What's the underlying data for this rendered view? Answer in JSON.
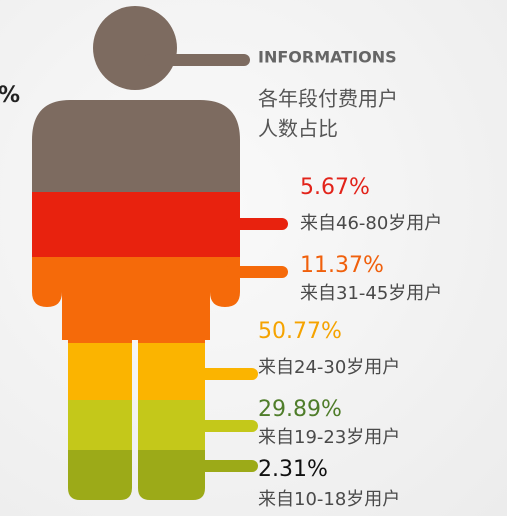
{
  "header": {
    "title": "INFORMATIONS",
    "subtitle_line1": "各年段付费用户",
    "subtitle_line2": "人数占比"
  },
  "left_fragment": "%",
  "items": [
    {
      "percent": "5.67%",
      "label": "来自46-80岁用户",
      "color": "#e2231a"
    },
    {
      "percent": "11.37%",
      "label": "来自31-45岁用户",
      "color": "#f0600c"
    },
    {
      "percent": "50.77%",
      "label": "来自24-30岁用户",
      "color": "#f5a300"
    },
    {
      "percent": "29.89%",
      "label": "来自19-23岁用户",
      "color": "#4f7d2a"
    },
    {
      "percent": "2.31%",
      "label": "来自10-18岁用户",
      "color": "#111111"
    }
  ]
}
